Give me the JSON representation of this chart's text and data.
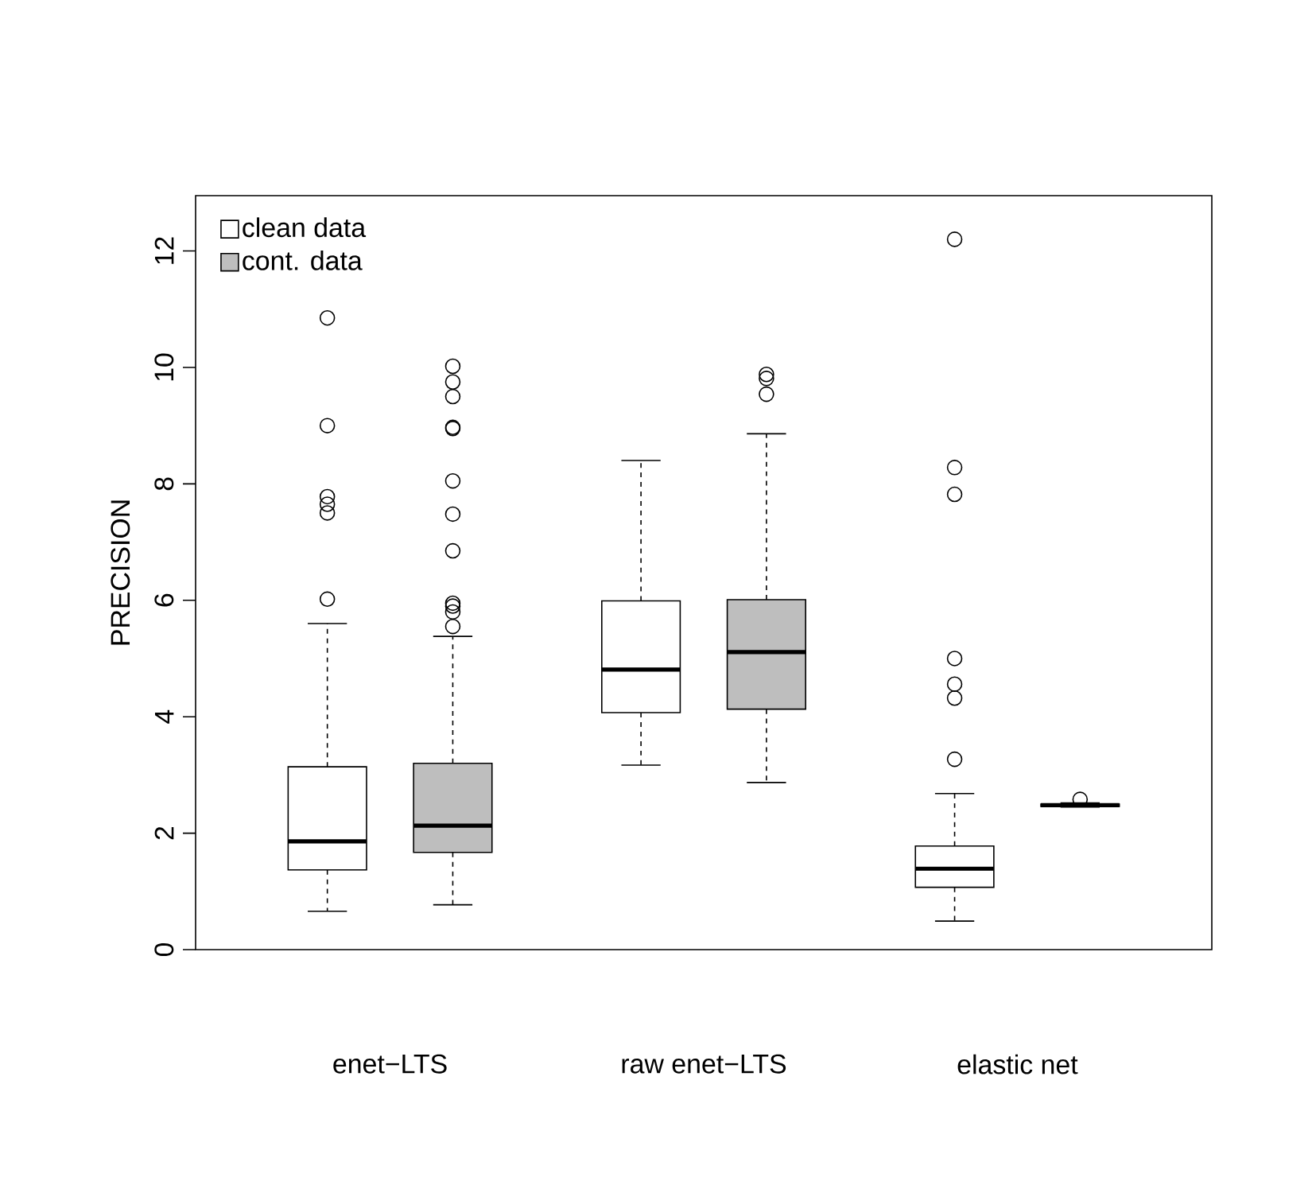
{
  "chart_data": {
    "type": "box",
    "ylabel": "PRECISION",
    "categories": [
      "enet−LTS",
      "raw enet−LTS",
      "elastic net"
    ],
    "ylim": [
      0,
      12.95
    ],
    "yticks": [
      0,
      2,
      4,
      6,
      8,
      10,
      12
    ],
    "legend": "top left",
    "series": [
      {
        "name": "clean data",
        "color": "#ffffff",
        "boxes": [
          {
            "low": 0.66,
            "q1": 1.37,
            "median": 1.86,
            "q3": 3.14,
            "high": 5.6,
            "outliers": [
              6.02,
              7.5,
              7.65,
              7.78,
              9.0,
              10.85
            ]
          },
          {
            "low": 3.17,
            "q1": 4.07,
            "median": 4.81,
            "q3": 5.99,
            "high": 8.4
          },
          {
            "low": 0.49,
            "q1": 1.07,
            "median": 1.39,
            "q3": 1.78,
            "high": 2.68,
            "outliers": [
              3.27,
              4.32,
              4.56,
              5.0,
              7.82,
              8.28,
              12.2
            ]
          }
        ]
      },
      {
        "name": "cont. data",
        "color": "#bebebe",
        "boxes": [
          {
            "low": 0.77,
            "q1": 1.67,
            "median": 2.13,
            "q3": 3.2,
            "high": 5.38,
            "outliers": [
              5.55,
              5.8,
              5.9,
              5.95,
              6.85,
              7.48,
              8.05,
              8.95,
              8.97,
              9.5,
              9.75,
              10.02
            ]
          },
          {
            "low": 2.87,
            "q1": 4.13,
            "median": 5.11,
            "q3": 6.01,
            "high": 8.86,
            "outliers": [
              9.54,
              9.81,
              9.88
            ]
          },
          {
            "low": 2.45,
            "q1": 2.46,
            "median": 2.48,
            "q3": 2.5,
            "high": 2.52,
            "outliers": [
              2.58
            ]
          }
        ]
      }
    ]
  }
}
